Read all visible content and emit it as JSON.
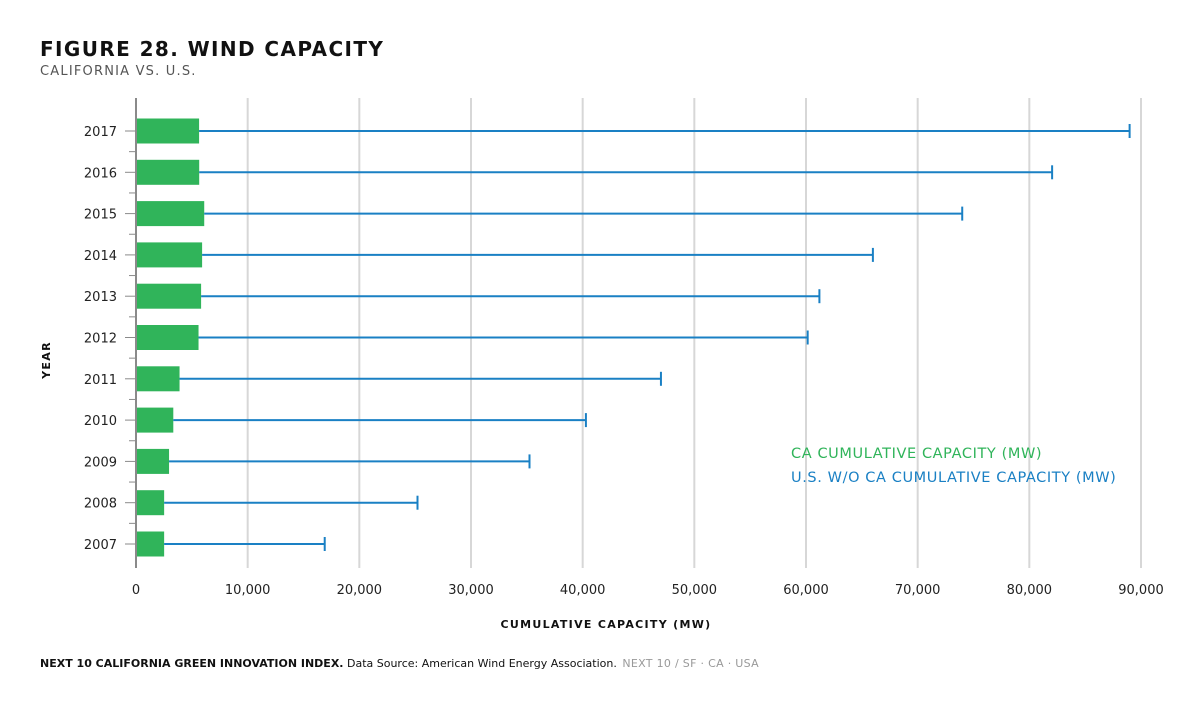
{
  "header": {
    "title": "FIGURE 28. WIND CAPACITY",
    "subtitle": "CALIFORNIA VS. U.S."
  },
  "colors": {
    "ca": "#30b45a",
    "us": "#1a80c4",
    "grid": "#d7d7d7",
    "axis": "#8a8a8a"
  },
  "chart_data": {
    "type": "bar",
    "orientation": "horizontal",
    "categories": [
      "2017",
      "2016",
      "2015",
      "2014",
      "2013",
      "2012",
      "2011",
      "2010",
      "2009",
      "2008",
      "2007"
    ],
    "series": [
      {
        "name": "CA CUMULATIVE CAPACITY (MW)",
        "style": "bar",
        "values": [
          5650,
          5660,
          6110,
          5920,
          5830,
          5600,
          3900,
          3340,
          2960,
          2520,
          2520
        ]
      },
      {
        "name": "U.S. W/O CA CUMULATIVE CAPACITY (MW)",
        "style": "line-with-endcap",
        "values": [
          88980,
          82040,
          73990,
          65990,
          61200,
          60150,
          47010,
          40290,
          35240,
          25210,
          16900
        ]
      }
    ],
    "xlabel": "CUMULATIVE CAPACITY (MW)",
    "ylabel": "YEAR",
    "xlim": [
      0,
      90000
    ],
    "xticks": [
      0,
      10000,
      20000,
      30000,
      40000,
      50000,
      60000,
      70000,
      80000,
      90000
    ],
    "xtick_labels": [
      "0",
      "10,000",
      "20,000",
      "30,000",
      "40,000",
      "50,000",
      "60,000",
      "70,000",
      "80,000",
      "90,000"
    ],
    "grid": "vertical",
    "legend_position": "right"
  },
  "footer": {
    "bold": "NEXT 10 CALIFORNIA GREEN INNOVATION INDEX.",
    "source": "Data Source: American Wind Energy Association.",
    "brand": "NEXT 10  /  SF · CA · USA"
  }
}
